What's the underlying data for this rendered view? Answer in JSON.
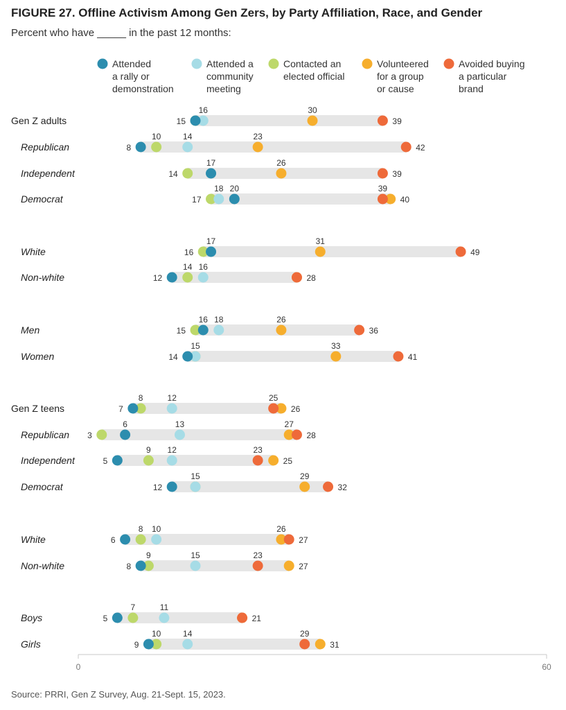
{
  "title": "FIGURE 27. Offline Activism Among Gen Zers, by Party Affiliation, Race, and Gender",
  "subtitle": "Percent who have _____ in the past 12 months:",
  "source": "Source: PRRI, Gen Z Survey, Aug. 21-Sept. 15, 2023.",
  "chart_data": {
    "type": "dot",
    "xlim": [
      0,
      60
    ],
    "x_ticks": [
      0,
      60
    ],
    "legend_position": "top",
    "series": [
      {
        "name": "Attended a rally or demonstration",
        "lines": [
          "Attended",
          "a rally or",
          "demonstration"
        ],
        "color": "#2C8DAE"
      },
      {
        "name": "Attended a community meeting",
        "lines": [
          "Attended a",
          "community",
          "meeting"
        ],
        "color": "#A6DCE6"
      },
      {
        "name": "Contacted an elected official",
        "lines": [
          "Contacted an",
          "elected official"
        ],
        "color": "#BDD86A"
      },
      {
        "name": "Volunteered for a group or cause",
        "lines": [
          "Volunteered",
          "for a group",
          "or cause"
        ],
        "color": "#F6AE2D"
      },
      {
        "name": "Avoided buying a particular brand",
        "lines": [
          "Avoided buying",
          "a particular",
          "brand"
        ],
        "color": "#EE6A3A"
      }
    ],
    "rows": [
      {
        "label": "Gen Z adults",
        "sub": false,
        "values": [
          15,
          16,
          15,
          30,
          39
        ],
        "labels_above": [
          "16",
          "30"
        ],
        "labels_left": "15",
        "labels_right": "39"
      },
      {
        "label": "Republican",
        "sub": true,
        "values": [
          8,
          14,
          10,
          23,
          42
        ],
        "labels_above": [
          "10",
          "14",
          "23"
        ],
        "labels_left": "8",
        "labels_right": "42"
      },
      {
        "label": "Independent",
        "sub": true,
        "values": [
          17,
          17,
          14,
          26,
          39
        ],
        "labels_above": [
          "17",
          "26"
        ],
        "labels_left": "14",
        "labels_right": "39"
      },
      {
        "label": "Democrat",
        "sub": true,
        "values": [
          20,
          18,
          17,
          40,
          39
        ],
        "labels_above": [
          "18",
          "20",
          "39"
        ],
        "labels_left": "17",
        "labels_right": "40"
      },
      {
        "label": "White",
        "sub": true,
        "values": [
          17,
          17,
          16,
          31,
          49
        ],
        "labels_above": [
          "17",
          "31"
        ],
        "labels_left": "16",
        "labels_right": "49"
      },
      {
        "label": "Non-white",
        "sub": true,
        "values": [
          12,
          16,
          14,
          28,
          28
        ],
        "labels_above": [
          "14",
          "16"
        ],
        "labels_left": "12",
        "labels_right": "28"
      },
      {
        "label": "Men",
        "sub": true,
        "values": [
          16,
          18,
          15,
          26,
          36
        ],
        "labels_above": [
          "16",
          "18",
          "26"
        ],
        "labels_left": "15",
        "labels_right": "36"
      },
      {
        "label": "Women",
        "sub": true,
        "values": [
          14,
          15,
          15,
          33,
          41
        ],
        "labels_above": [
          "15",
          "33"
        ],
        "labels_left": "14",
        "labels_right": "41"
      },
      {
        "label": "Gen Z teens",
        "sub": false,
        "values": [
          7,
          12,
          8,
          26,
          25
        ],
        "labels_above": [
          "8",
          "12",
          "25"
        ],
        "labels_left": "7",
        "labels_right": "26"
      },
      {
        "label": "Republican",
        "sub": true,
        "values": [
          6,
          13,
          3,
          27,
          28
        ],
        "labels_above": [
          "6",
          "13",
          "27"
        ],
        "labels_left": "3",
        "labels_right": "28"
      },
      {
        "label": "Independent",
        "sub": true,
        "values": [
          5,
          12,
          9,
          25,
          23
        ],
        "labels_above": [
          "9",
          "12",
          "23"
        ],
        "labels_left": "5",
        "labels_right": "25"
      },
      {
        "label": "Democrat",
        "sub": true,
        "values": [
          12,
          15,
          15,
          29,
          32
        ],
        "labels_above": [
          "15",
          "29"
        ],
        "labels_left": "12",
        "labels_right": "32"
      },
      {
        "label": "White",
        "sub": true,
        "values": [
          6,
          10,
          8,
          26,
          27
        ],
        "labels_above": [
          "8",
          "10",
          "26"
        ],
        "labels_left": "6",
        "labels_right": "27"
      },
      {
        "label": "Non-white",
        "sub": true,
        "values": [
          8,
          15,
          9,
          27,
          23
        ],
        "labels_above": [
          "9",
          "15",
          "23"
        ],
        "labels_left": "8",
        "labels_right": "27"
      },
      {
        "label": "Boys",
        "sub": true,
        "values": [
          5,
          11,
          7,
          21,
          21
        ],
        "labels_above": [
          "7",
          "11"
        ],
        "labels_left": "5",
        "labels_right": "21"
      },
      {
        "label": "Girls",
        "sub": true,
        "values": [
          9,
          14,
          10,
          31,
          29
        ],
        "labels_above": [
          "10",
          "14",
          "29"
        ],
        "labels_left": "9",
        "labels_right": "31"
      }
    ]
  }
}
